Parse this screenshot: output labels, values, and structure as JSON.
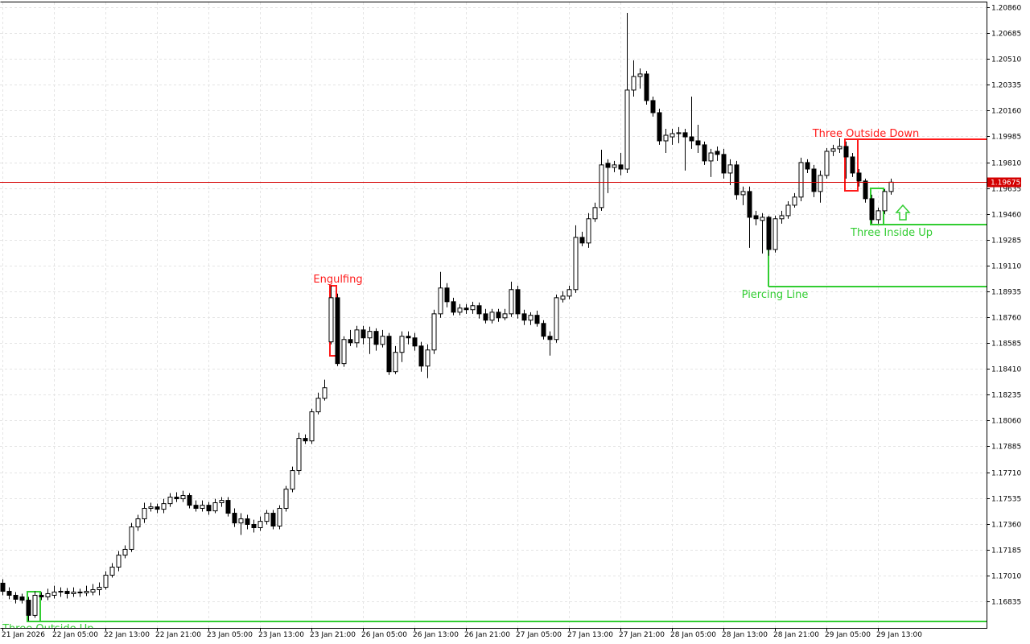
{
  "chart_data": {
    "type": "candlestick",
    "categories": [
      "21 Jan 2026",
      null,
      null,
      null,
      null,
      null,
      null,
      null,
      "22 Jan 05:00",
      null,
      null,
      null,
      null,
      null,
      null,
      null,
      "22 Jan 13:00",
      null,
      null,
      null,
      null,
      null,
      null,
      null,
      "22 Jan 21:00",
      null,
      null,
      null,
      null,
      null,
      null,
      null,
      "23 Jan 05:00",
      null,
      null,
      null,
      null,
      null,
      null,
      null,
      "23 Jan 13:00",
      null,
      null,
      null,
      null,
      null,
      null,
      null,
      "23 Jan 21:00",
      null,
      null,
      null,
      null,
      null,
      null,
      null,
      "26 Jan 05:00",
      null,
      null,
      null,
      null,
      null,
      null,
      null,
      "26 Jan 13:00",
      null,
      null,
      null,
      null,
      null,
      null,
      null,
      "26 Jan 21:00",
      null,
      null,
      null,
      null,
      null,
      null,
      null,
      "27 Jan 05:00",
      null,
      null,
      null,
      null,
      null,
      null,
      null,
      "27 Jan 13:00",
      null,
      null,
      null,
      null,
      null,
      null,
      null,
      "27 Jan 21:00",
      null,
      null,
      null,
      null,
      null,
      null,
      null,
      "28 Jan 05:00",
      null,
      null,
      null,
      null,
      null,
      null,
      null,
      "28 Jan 13:00",
      null,
      null,
      null,
      null,
      null,
      null,
      null,
      "28 Jan 21:00",
      null,
      null,
      null,
      null,
      null,
      null,
      null,
      "29 Jan 05:00",
      null,
      null,
      null,
      null,
      null,
      null,
      null,
      "29 Jan 13:00",
      null,
      null
    ],
    "open": [
      1.16958,
      1.16903,
      1.16876,
      1.16865,
      1.16843,
      1.1674,
      1.16876,
      1.16865,
      1.16876,
      1.16898,
      1.16903,
      1.16887,
      1.16898,
      1.16892,
      1.16898,
      1.16914,
      1.1693,
      1.17012,
      1.17067,
      1.17148,
      1.17187,
      1.17339,
      1.17394,
      1.17465,
      1.17475,
      1.17459,
      1.17497,
      1.17541,
      1.1753,
      1.17552,
      1.17486,
      1.17465,
      1.17486,
      1.17448,
      1.17503,
      1.17519,
      1.17432,
      1.17366,
      1.17394,
      1.17356,
      1.17334,
      1.17377,
      1.17432,
      1.17345,
      1.17465,
      1.17595,
      1.17721,
      1.17939,
      1.17922,
      1.18119,
      1.18211,
      1.18593,
      1.18892,
      1.18446,
      1.18609,
      1.18587,
      1.18674,
      1.1862,
      1.18664,
      1.18576,
      1.18631,
      1.18391,
      1.18522,
      1.18631,
      1.1862,
      1.18565,
      1.18429,
      1.18538,
      1.18783,
      1.18958,
      1.18865,
      1.18794,
      1.18822,
      1.18811,
      1.18838,
      1.18783,
      1.1874,
      1.18794,
      1.18756,
      1.18783,
      1.18947,
      1.18783,
      1.1874,
      1.18773,
      1.18718,
      1.18631,
      1.18609,
      1.18882,
      1.18903,
      1.18947,
      1.19301,
      1.19263,
      1.19427,
      1.19503,
      1.19803,
      1.19775,
      1.19792,
      1.19764,
      1.20299,
      1.20391,
      1.20408,
      1.20228,
      1.20146,
      1.19955,
      1.19982,
      1.20004,
      1.2001,
      1.19982,
      1.19955,
      1.19928,
      1.19819,
      1.19884,
      1.19863,
      1.19737,
      1.19792,
      1.1959,
      1.19612,
      1.19448,
      1.19416,
      1.19437,
      1.19219,
      1.19427,
      1.19448,
      1.19519,
      1.19574,
      1.19808,
      1.19764,
      1.19612,
      1.19721,
      1.19884,
      1.19901,
      1.19917,
      1.19846,
      1.19737,
      1.19683,
      1.19563,
      1.19421,
      1.19481,
      1.19612
    ],
    "high": [
      1.16985,
      1.1693,
      1.16898,
      1.16887,
      1.16865,
      1.16903,
      1.16898,
      1.1692,
      1.16941,
      1.1693,
      1.16925,
      1.1693,
      1.1692,
      1.16941,
      1.16952,
      1.16963,
      1.17039,
      1.17094,
      1.17176,
      1.17214,
      1.17366,
      1.17421,
      1.17503,
      1.17503,
      1.17497,
      1.1753,
      1.17568,
      1.17574,
      1.17584,
      1.17568,
      1.17519,
      1.17519,
      1.17508,
      1.1753,
      1.17541,
      1.17541,
      1.17465,
      1.17432,
      1.17421,
      1.17388,
      1.1741,
      1.17454,
      1.17454,
      1.17486,
      1.17617,
      1.17748,
      1.17977,
      1.17966,
      1.1814,
      1.18249,
      1.18337,
      1.18974,
      1.1892,
      1.18631,
      1.18674,
      1.18702,
      1.18702,
      1.18696,
      1.18685,
      1.18674,
      1.18653,
      1.18565,
      1.18664,
      1.18664,
      1.18653,
      1.18593,
      1.18576,
      1.18811,
      1.19067,
      1.18991,
      1.18892,
      1.18849,
      1.18849,
      1.18865,
      1.1886,
      1.18816,
      1.18816,
      1.18816,
      1.18816,
      1.19001,
      1.18974,
      1.18811,
      1.18794,
      1.18805,
      1.1874,
      1.18664,
      1.18914,
      1.18936,
      1.18974,
      1.19383,
      1.19339,
      1.19465,
      1.19536,
      1.19895,
      1.1983,
      1.19819,
      1.19873,
      1.20822,
      1.205,
      1.20446,
      1.20429,
      1.20255,
      1.20173,
      1.20037,
      1.20037,
      1.20048,
      1.20037,
      1.20255,
      1.20064,
      1.1995,
      1.19901,
      1.19917,
      1.19901,
      1.1983,
      1.19819,
      1.19645,
      1.19645,
      1.19481,
      1.19465,
      1.19448,
      1.19448,
      1.19481,
      1.19546,
      1.19601,
      1.19841,
      1.1983,
      1.19792,
      1.19754,
      1.19906,
      1.19928,
      1.19972,
      1.1995,
      1.19873,
      1.19764,
      1.19699,
      1.1959,
      1.19503,
      1.19628,
      1.19699
    ],
    "low": [
      1.16876,
      1.16849,
      1.16821,
      1.16821,
      1.16702,
      1.16723,
      1.16843,
      1.16843,
      1.16854,
      1.16865,
      1.16854,
      1.16865,
      1.16865,
      1.16871,
      1.16876,
      1.16876,
      1.16914,
      1.16996,
      1.17039,
      1.17127,
      1.1717,
      1.17312,
      1.17366,
      1.17443,
      1.17432,
      1.17432,
      1.17475,
      1.17508,
      1.17508,
      1.17465,
      1.17443,
      1.17443,
      1.17421,
      1.17432,
      1.17475,
      1.1741,
      1.17339,
      1.17285,
      1.17323,
      1.17301,
      1.17312,
      1.17356,
      1.17323,
      1.17323,
      1.17443,
      1.17574,
      1.17693,
      1.17901,
      1.17901,
      1.18102,
      1.18195,
      1.18576,
      1.18429,
      1.18424,
      1.18565,
      1.18555,
      1.18576,
      1.18511,
      1.18533,
      1.18555,
      1.18369,
      1.18375,
      1.18456,
      1.18576,
      1.18533,
      1.18391,
      1.18347,
      1.18511,
      1.18756,
      1.18827,
      1.18773,
      1.18773,
      1.18783,
      1.18783,
      1.18751,
      1.18718,
      1.18718,
      1.18729,
      1.1874,
      1.18762,
      1.18751,
      1.18707,
      1.18707,
      1.18696,
      1.18609,
      1.185,
      1.18587,
      1.1886,
      1.18882,
      1.18925,
      1.19241,
      1.1923,
      1.19405,
      1.19481,
      1.19601,
      1.19743,
      1.19721,
      1.19737,
      1.20255,
      1.20309,
      1.202,
      1.20119,
      1.19928,
      1.19873,
      1.19928,
      1.19939,
      1.19754,
      1.19901,
      1.19873,
      1.19792,
      1.1971,
      1.19819,
      1.19699,
      1.19655,
      1.19557,
      1.19519,
      1.1923,
      1.19383,
      1.19192,
      1.19176,
      1.19198,
      1.19394,
      1.19427,
      1.19503,
      1.19546,
      1.19737,
      1.19574,
      1.19536,
      1.19699,
      1.19852,
      1.19873,
      1.19699,
      1.1971,
      1.19645,
      1.19536,
      1.19394,
      1.19394,
      1.19459,
      1.1959
    ],
    "close": [
      1.16903,
      1.16876,
      1.16849,
      1.16843,
      1.1674,
      1.16876,
      1.16865,
      1.16887,
      1.16898,
      1.16903,
      1.16887,
      1.16898,
      1.16892,
      1.16903,
      1.16914,
      1.1693,
      1.17012,
      1.17067,
      1.17148,
      1.17187,
      1.17339,
      1.17394,
      1.17465,
      1.17475,
      1.17459,
      1.17497,
      1.17541,
      1.1753,
      1.17552,
      1.17486,
      1.17465,
      1.17486,
      1.17448,
      1.17503,
      1.17519,
      1.17432,
      1.17366,
      1.17394,
      1.17356,
      1.17334,
      1.17377,
      1.17432,
      1.17345,
      1.17465,
      1.17595,
      1.17721,
      1.17939,
      1.17922,
      1.18119,
      1.18211,
      1.18282,
      1.18892,
      1.18446,
      1.18609,
      1.18587,
      1.18674,
      1.1862,
      1.18664,
      1.18576,
      1.18631,
      1.18391,
      1.18522,
      1.18631,
      1.1862,
      1.18565,
      1.18429,
      1.18538,
      1.18783,
      1.18958,
      1.18865,
      1.18794,
      1.18822,
      1.18811,
      1.18838,
      1.18783,
      1.1874,
      1.18794,
      1.18756,
      1.18783,
      1.18947,
      1.18783,
      1.1874,
      1.18773,
      1.18718,
      1.18631,
      1.18609,
      1.18892,
      1.18903,
      1.18947,
      1.19301,
      1.19263,
      1.19427,
      1.19503,
      1.19792,
      1.19775,
      1.19792,
      1.19764,
      1.20299,
      1.20391,
      1.20408,
      1.20228,
      1.20146,
      1.19955,
      1.19993,
      1.20004,
      1.2001,
      1.19982,
      1.19955,
      1.19928,
      1.19819,
      1.19873,
      1.19863,
      1.19737,
      1.19792,
      1.1959,
      1.19612,
      1.19437,
      1.19427,
      1.19437,
      1.19219,
      1.19427,
      1.19448,
      1.19519,
      1.19574,
      1.19808,
      1.19764,
      1.19612,
      1.19721,
      1.19884,
      1.19901,
      1.19917,
      1.19846,
      1.19737,
      1.19683,
      1.19563,
      1.19421,
      1.19481,
      1.19612,
      1.19675
    ],
    "ylim": [
      1.16655,
      1.20893
    ],
    "yticks": [
      {
        "value": 1.2086,
        "label": "1.20860"
      },
      1.20685,
      {
        "value": 1.2051,
        "label": "1.20510"
      },
      1.20335,
      {
        "value": 1.2016,
        "label": "1.20160"
      },
      1.19985,
      {
        "value": 1.1981,
        "label": "1.19810"
      },
      1.19635,
      {
        "value": 1.1946,
        "label": "1.19460"
      },
      1.19285,
      {
        "value": 1.1911,
        "label": "1.19110"
      },
      1.18935,
      {
        "value": 1.1876,
        "label": "1.18760"
      },
      1.18585,
      {
        "value": 1.1841,
        "label": "1.18410"
      },
      1.18235,
      {
        "value": 1.1806,
        "label": "1.18060"
      },
      1.17885,
      {
        "value": 1.1771,
        "label": "1.17710"
      },
      1.17535,
      {
        "value": 1.1736,
        "label": "1.17360"
      },
      1.17185,
      {
        "value": 1.1701,
        "label": "1.17010"
      },
      1.16835
    ],
    "grid": true,
    "up_color": "#ffffff",
    "down_color": "#000000",
    "wick_color": "#000000",
    "last_price_color": "#d40000",
    "annotations": [
      {
        "text": "Three Outside Up",
        "color": "#32cd32"
      },
      {
        "text": "Engulfing",
        "color": "#ff1a1a"
      },
      {
        "text": "Piercing Line",
        "color": "#32cd32"
      },
      {
        "text": "Three Outside Down",
        "color": "#ff1a1a"
      },
      {
        "text": "Three Inside Up",
        "color": "#32cd32"
      }
    ]
  }
}
